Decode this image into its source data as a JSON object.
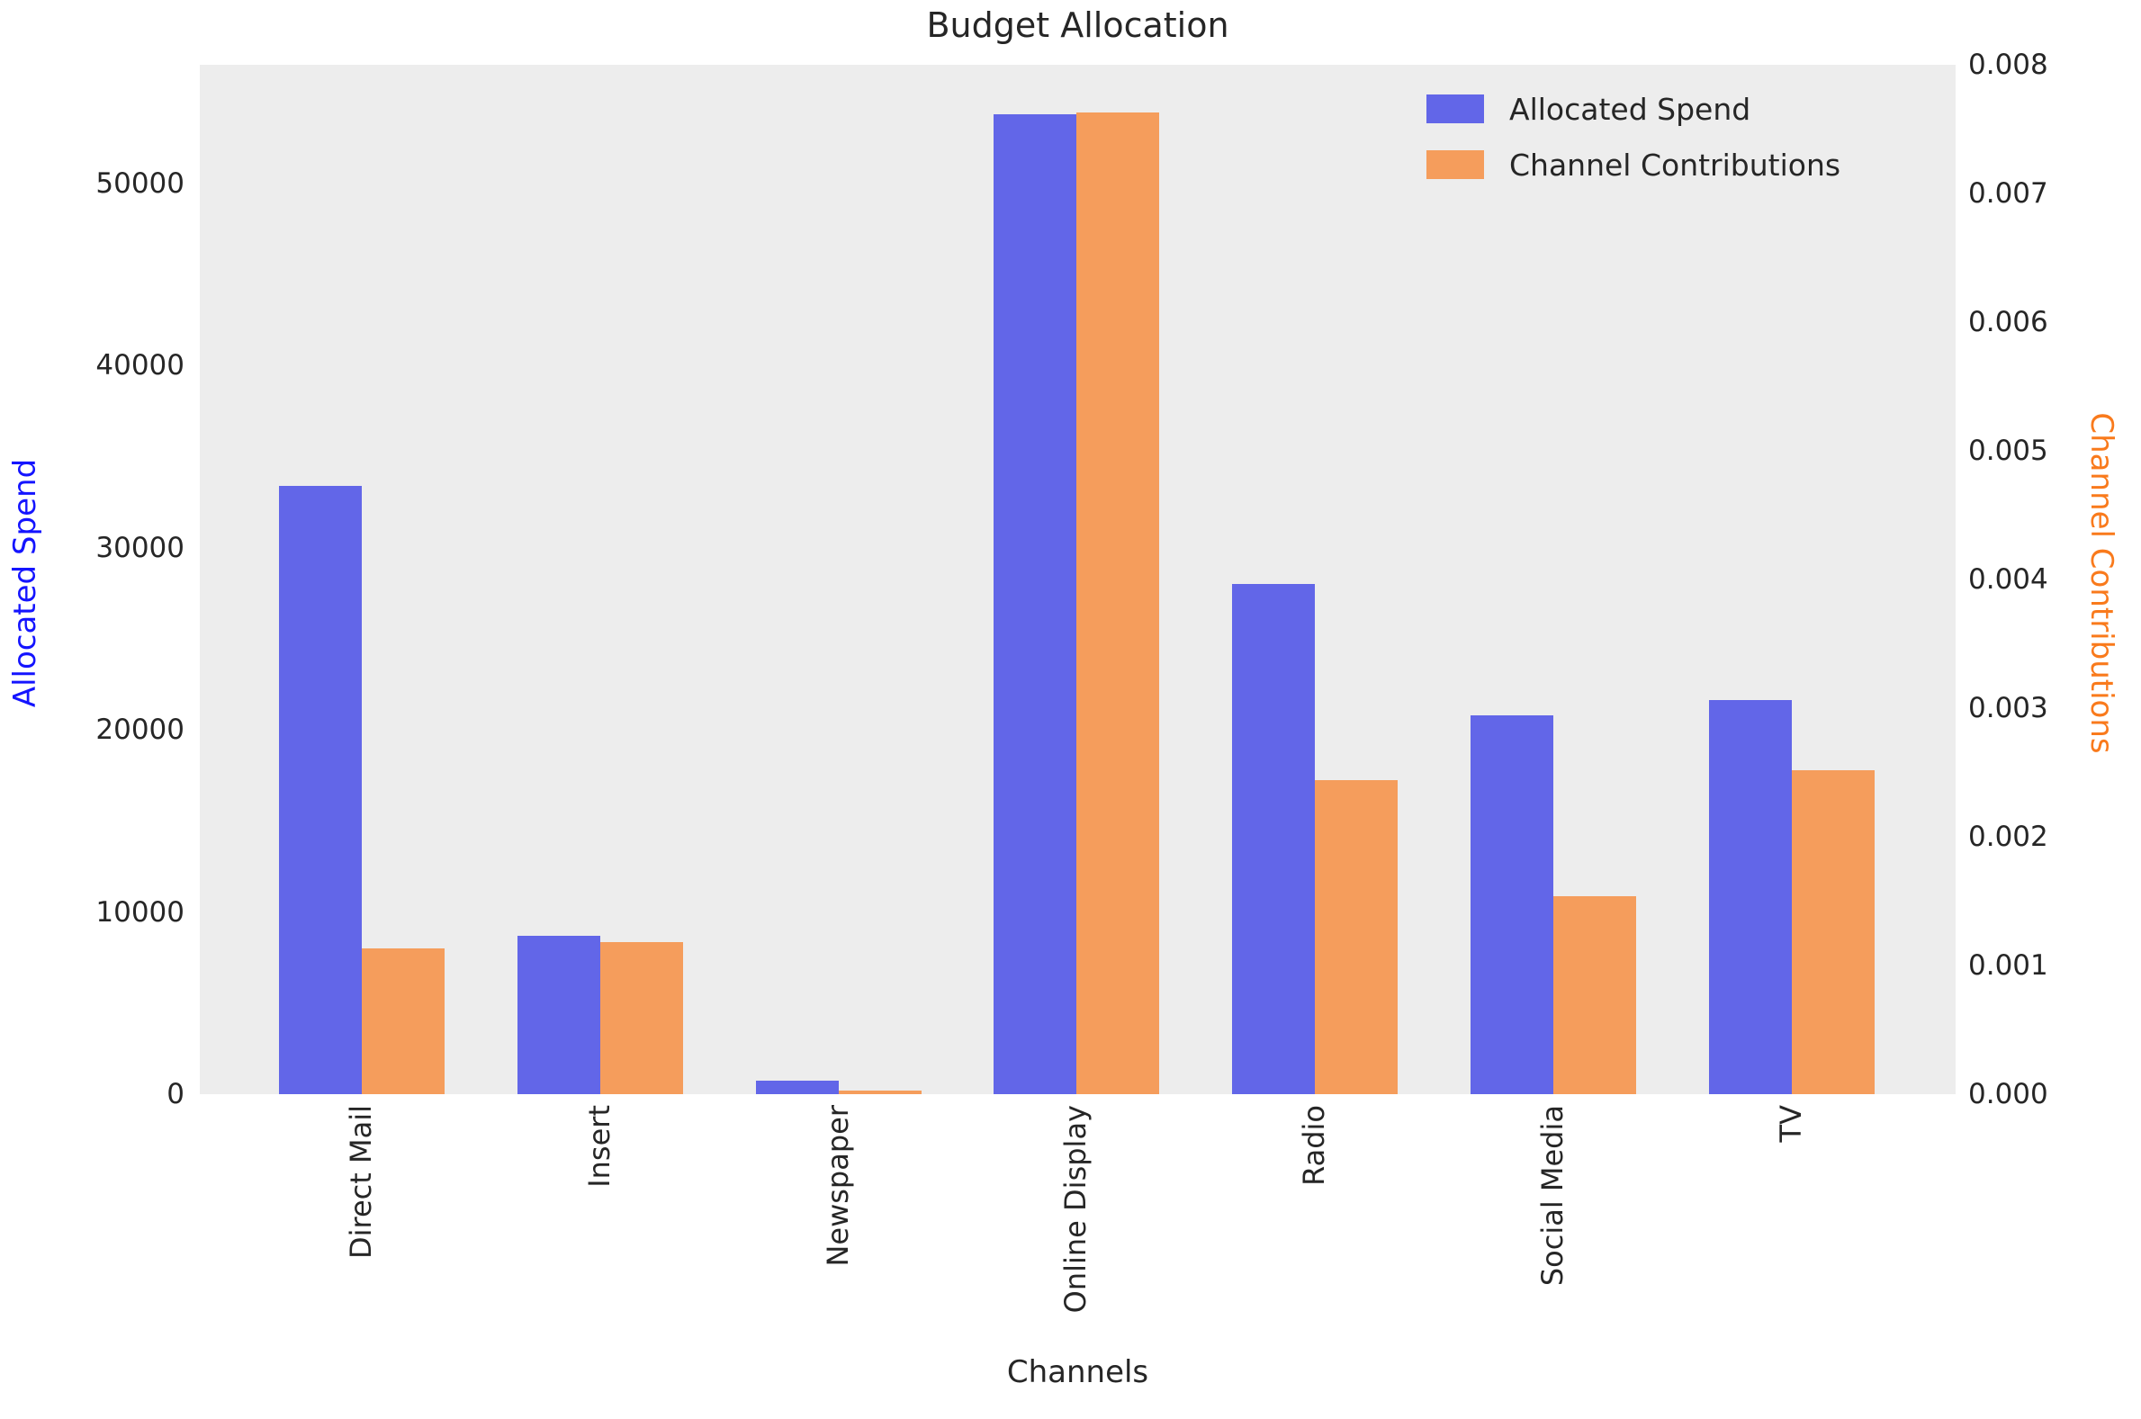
{
  "title": "Budget Allocation",
  "chart_data": {
    "type": "bar",
    "title": "Budget Allocation",
    "categories": [
      "Direct Mail",
      "Insert",
      "Newspaper",
      "Online Display",
      "Radio",
      "Social Media",
      "TV"
    ],
    "series": [
      {
        "name": "Allocated Spend",
        "axis": "left",
        "color": "#6266e8",
        "values": [
          33400,
          8700,
          750,
          53800,
          28000,
          20800,
          21650
        ]
      },
      {
        "name": "Channel Contributions",
        "axis": "right",
        "color": "#f59d5c",
        "values": [
          0.00113,
          0.00118,
          3e-05,
          0.00763,
          0.00244,
          0.00154,
          0.00252
        ]
      }
    ],
    "xlabel": "Channels",
    "ylabel_left": "Allocated Spend",
    "ylabel_right": "Channel Contributions",
    "ylim_left": [
      0,
      56500
    ],
    "ylim_right": [
      0,
      0.008
    ],
    "yticks_left": {
      "values": [
        0,
        10000,
        20000,
        30000,
        40000,
        50000
      ],
      "labels": [
        "0",
        "10000",
        "20000",
        "30000",
        "40000",
        "50000"
      ]
    },
    "yticks_right": {
      "values": [
        0,
        0.001,
        0.002,
        0.003,
        0.004,
        0.005,
        0.006,
        0.007,
        0.008
      ],
      "labels": [
        "0.000",
        "0.001",
        "0.002",
        "0.003",
        "0.004",
        "0.005",
        "0.006",
        "0.007",
        "0.008"
      ]
    },
    "legend": {
      "position": "upper right",
      "entries": [
        "Allocated Spend",
        "Channel Contributions"
      ]
    },
    "grid": false,
    "plot_bg": "#ededed",
    "axis_label_colors": {
      "left": "#1414ff",
      "right": "#f97a1c"
    },
    "tick_color": "#262626"
  }
}
